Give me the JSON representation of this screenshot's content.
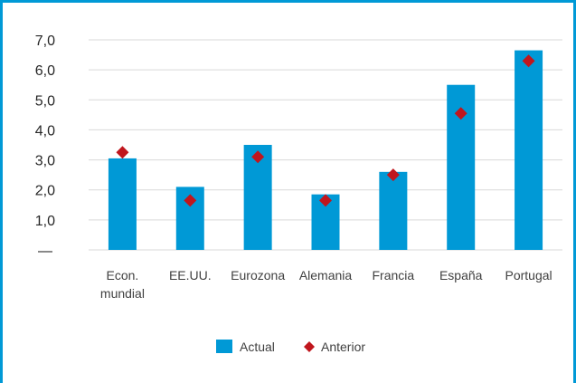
{
  "colors": {
    "frame": "#0099d6",
    "bar": "#0099d6",
    "marker": "#c0161d",
    "grid": "#d9d9d9"
  },
  "chart_data": {
    "type": "bar",
    "title": "",
    "xlabel": "",
    "ylabel": "",
    "ylim": [
      0,
      7.0
    ],
    "yticks": [
      {
        "value": 0,
        "label": "—"
      },
      {
        "value": 1.0,
        "label": "1,0"
      },
      {
        "value": 2.0,
        "label": "2,0"
      },
      {
        "value": 3.0,
        "label": "3,0"
      },
      {
        "value": 4.0,
        "label": "4,0"
      },
      {
        "value": 5.0,
        "label": "5,0"
      },
      {
        "value": 6.0,
        "label": "6,0"
      },
      {
        "value": 7.0,
        "label": "7,0"
      }
    ],
    "grid": true,
    "legend_position": "bottom",
    "categories": [
      [
        "Econ.",
        "mundial"
      ],
      [
        "EE.UU."
      ],
      [
        "Eurozona"
      ],
      [
        "Alemania"
      ],
      [
        "Francia"
      ],
      [
        "España"
      ],
      [
        "Portugal"
      ]
    ],
    "series": [
      {
        "name": "Actual",
        "type": "bar",
        "values": [
          3.05,
          2.1,
          3.5,
          1.85,
          2.6,
          5.5,
          6.65
        ]
      },
      {
        "name": "Anterior",
        "type": "marker",
        "values": [
          3.25,
          1.65,
          3.1,
          1.65,
          2.5,
          4.55,
          6.3
        ]
      }
    ]
  }
}
